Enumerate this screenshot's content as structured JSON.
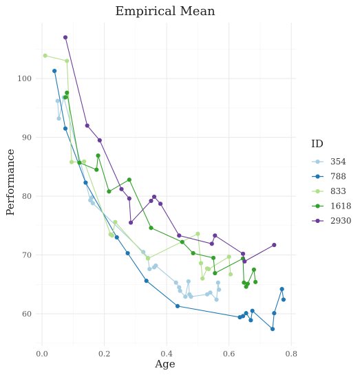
{
  "chart_data": {
    "type": "line",
    "title": "Empirical Mean",
    "xlabel": "Age",
    "ylabel": "Performance",
    "xlim": [
      -0.02,
      0.815
    ],
    "ylim": [
      54.5,
      109.5
    ],
    "xticks": [
      0.0,
      0.2,
      0.4,
      0.6,
      0.8
    ],
    "xtick_labels": [
      "0.0",
      "0.2",
      "0.4",
      "0.6",
      "0.8"
    ],
    "yticks": [
      60,
      70,
      80,
      90,
      100
    ],
    "ytick_labels": [
      "60",
      "70",
      "80",
      "90",
      "100"
    ],
    "grid": true,
    "legend": {
      "title": "ID",
      "position": "right"
    },
    "series": [
      {
        "name": "354",
        "color": "#a6cee3",
        "points": [
          [
            0.05,
            96.2
          ],
          [
            0.054,
            93.2
          ],
          [
            0.07,
            96.8
          ],
          [
            0.155,
            79.3
          ],
          [
            0.16,
            79.8
          ],
          [
            0.163,
            78.8
          ],
          [
            0.325,
            70.5
          ],
          [
            0.34,
            69.5
          ],
          [
            0.345,
            67.6
          ],
          [
            0.36,
            67.9
          ],
          [
            0.365,
            68.2
          ],
          [
            0.43,
            65.3
          ],
          [
            0.44,
            64.5
          ],
          [
            0.443,
            63.9
          ],
          [
            0.46,
            62.9
          ],
          [
            0.47,
            65.5
          ],
          [
            0.473,
            63.3
          ],
          [
            0.478,
            62.9
          ],
          [
            0.53,
            63.3
          ],
          [
            0.54,
            63.6
          ],
          [
            0.56,
            62.4
          ],
          [
            0.565,
            65.3
          ],
          [
            0.568,
            64.1
          ]
        ]
      },
      {
        "name": "788",
        "color": "#1f78b4",
        "points": [
          [
            0.04,
            101.3
          ],
          [
            0.075,
            91.5
          ],
          [
            0.14,
            82.3
          ],
          [
            0.24,
            73.0
          ],
          [
            0.275,
            70.3
          ],
          [
            0.335,
            65.6
          ],
          [
            0.435,
            61.3
          ],
          [
            0.635,
            59.4
          ],
          [
            0.645,
            59.6
          ],
          [
            0.655,
            60.1
          ],
          [
            0.67,
            58.9
          ],
          [
            0.675,
            60.5
          ],
          [
            0.74,
            57.4
          ],
          [
            0.745,
            60.1
          ],
          [
            0.77,
            64.2
          ],
          [
            0.775,
            62.4
          ]
        ]
      },
      {
        "name": "833",
        "color": "#b2df8a",
        "points": [
          [
            0.01,
            103.9
          ],
          [
            0.08,
            103.0
          ],
          [
            0.095,
            85.8
          ],
          [
            0.135,
            85.9
          ],
          [
            0.22,
            73.5
          ],
          [
            0.225,
            73.3
          ],
          [
            0.235,
            75.6
          ],
          [
            0.34,
            69.4
          ],
          [
            0.5,
            73.6
          ],
          [
            0.51,
            68.6
          ],
          [
            0.515,
            66.0
          ],
          [
            0.53,
            67.7
          ],
          [
            0.535,
            67.6
          ],
          [
            0.6,
            69.7
          ],
          [
            0.605,
            66.7
          ]
        ]
      },
      {
        "name": "1618",
        "color": "#33a02c",
        "points": [
          [
            0.075,
            96.8
          ],
          [
            0.08,
            97.6
          ],
          [
            0.12,
            85.7
          ],
          [
            0.175,
            84.5
          ],
          [
            0.18,
            86.9
          ],
          [
            0.215,
            80.8
          ],
          [
            0.28,
            82.8
          ],
          [
            0.35,
            74.6
          ],
          [
            0.45,
            72.2
          ],
          [
            0.485,
            70.3
          ],
          [
            0.55,
            69.5
          ],
          [
            0.555,
            66.9
          ],
          [
            0.645,
            69.4
          ],
          [
            0.648,
            65.3
          ],
          [
            0.655,
            64.6
          ],
          [
            0.66,
            65.1
          ],
          [
            0.68,
            67.5
          ],
          [
            0.685,
            65.4
          ]
        ]
      },
      {
        "name": "2930",
        "color": "#6a3d9a",
        "points": [
          [
            0.075,
            107.0
          ],
          [
            0.145,
            92.0
          ],
          [
            0.185,
            89.5
          ],
          [
            0.255,
            81.2
          ],
          [
            0.28,
            79.6
          ],
          [
            0.285,
            75.5
          ],
          [
            0.35,
            79.2
          ],
          [
            0.36,
            79.9
          ],
          [
            0.38,
            78.7
          ],
          [
            0.44,
            73.3
          ],
          [
            0.545,
            71.9
          ],
          [
            0.555,
            73.3
          ],
          [
            0.645,
            70.2
          ],
          [
            0.65,
            68.9
          ],
          [
            0.745,
            71.7
          ]
        ]
      }
    ]
  }
}
